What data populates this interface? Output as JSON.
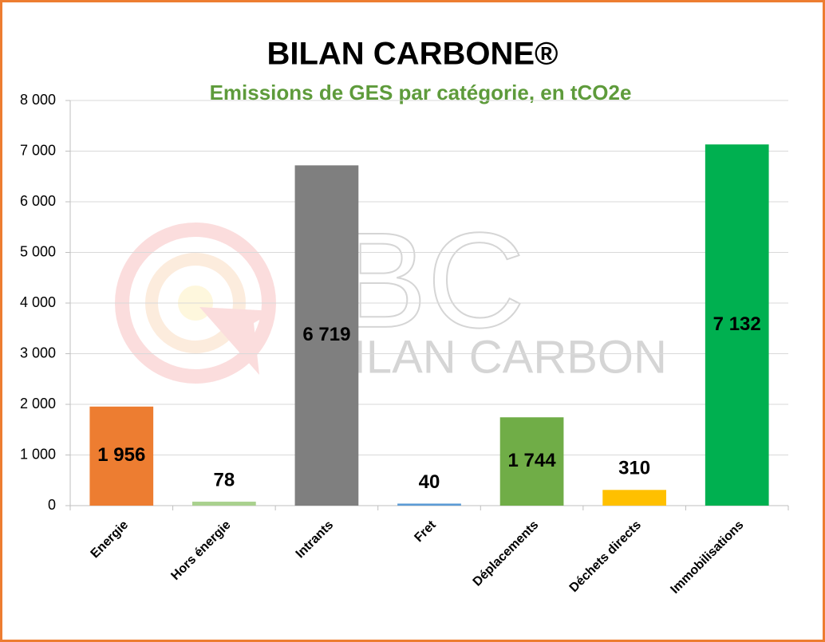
{
  "chart_data": {
    "type": "bar",
    "title": "BILAN CARBONE®",
    "subtitle": "Emissions de GES par catégorie, en tCO2e",
    "watermark": {
      "logo": "BC",
      "text": "BILAN CARBON"
    },
    "categories": [
      "Energie",
      "Hors énergie",
      "Intrants",
      "Fret",
      "Déplacements",
      "Déchets directs",
      "Immobilisations"
    ],
    "values": [
      1956,
      78,
      6719,
      40,
      1744,
      310,
      7132
    ],
    "value_labels": [
      "1 956",
      "78",
      "6 719",
      "40",
      "1 744",
      "310",
      "7 132"
    ],
    "colors": [
      "#ed7d31",
      "#a9d18e",
      "#7f7f7f",
      "#5b9bd5",
      "#70ad47",
      "#ffc000",
      "#00b050"
    ],
    "ylim": [
      0,
      8000
    ],
    "yticks": [
      0,
      {
        "value": 1000,
        "label": "1 000"
      },
      {
        "value": 2000,
        "label": "2 000"
      },
      {
        "value": 3000,
        "label": "3 000"
      },
      {
        "value": 4000,
        "label": "4 000"
      },
      {
        "value": 5000,
        "label": "5 000"
      },
      {
        "value": 6000,
        "label": "6 000"
      },
      {
        "value": 7000,
        "label": "7 000"
      },
      {
        "value": 8000,
        "label": "8 000"
      }
    ],
    "grid": true
  }
}
